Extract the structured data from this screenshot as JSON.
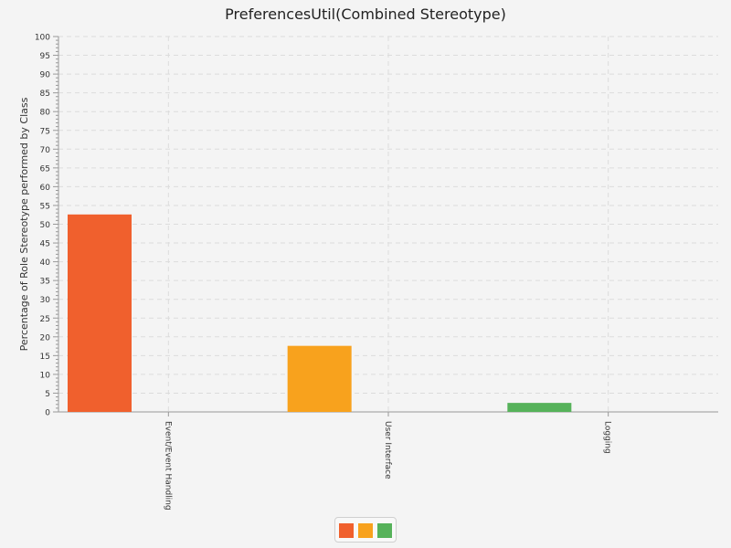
{
  "chart_data": {
    "type": "bar",
    "title": "PreferencesUtil(Combined Stereotype)",
    "xlabel": "",
    "ylabel": "Percentage of Role Stereotype performed by Class",
    "ylim": [
      0,
      100
    ],
    "y_ticks": [
      "0",
      "5",
      "10",
      "15",
      "20",
      "25",
      "30",
      "35",
      "40",
      "45",
      "50",
      "55",
      "60",
      "65",
      "70",
      "75",
      "80",
      "85",
      "90",
      "95",
      "100"
    ],
    "categories": [
      "Event/Event Handling",
      "User Interface",
      "Logging"
    ],
    "series": [
      {
        "values": [
          52.6,
          17.6,
          2.4
        ]
      }
    ],
    "colors": [
      "#f0602d",
      "#f8a21d",
      "#56b25a"
    ],
    "grid": true,
    "legend_placement": "bottom-center"
  }
}
